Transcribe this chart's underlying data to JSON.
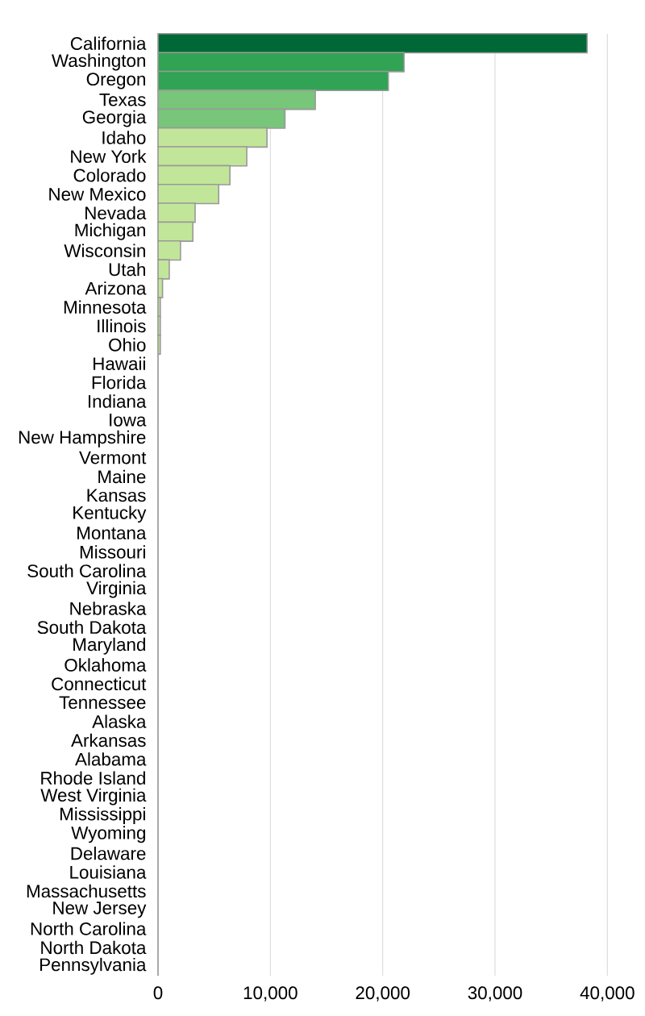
{
  "chart_data": {
    "type": "bar",
    "orientation": "horizontal",
    "categories": [
      "California",
      "Washington",
      "Oregon",
      "Texas",
      "Georgia",
      "Idaho",
      "New York",
      "Colorado",
      "New Mexico",
      "Nevada",
      "Michigan",
      "Wisconsin",
      "Utah",
      "Arizona",
      "Minnesota",
      "Illinois",
      "Ohio",
      "Hawaii",
      "Florida",
      "Indiana",
      "Iowa",
      "New Hampshire",
      "Vermont",
      "Maine",
      "Kansas",
      "Kentucky",
      "Montana",
      "Missouri",
      "South Carolina",
      "Virginia",
      "Nebraska",
      "South Dakota",
      "Maryland",
      "Oklahoma",
      "Connecticut",
      "Tennessee",
      "Alaska",
      "Arkansas",
      "Alabama",
      "Rhode Island",
      "West Virginia",
      "Mississippi",
      "Wyoming",
      "Delaware",
      "Louisiana",
      "Massachusetts",
      "New Jersey",
      "North Carolina",
      "North Dakota",
      "Pennsylvania"
    ],
    "values": [
      38200,
      21900,
      20500,
      14000,
      11300,
      9700,
      7900,
      6400,
      5400,
      3300,
      3100,
      2000,
      1000,
      400,
      200,
      200,
      200,
      0,
      0,
      0,
      0,
      0,
      0,
      0,
      0,
      0,
      0,
      0,
      0,
      0,
      0,
      0,
      0,
      0,
      0,
      0,
      0,
      0,
      0,
      0,
      0,
      0,
      0,
      0,
      0,
      0,
      0,
      0,
      0,
      0
    ],
    "colors": [
      "#006837",
      "#31a354",
      "#31a354",
      "#78c679",
      "#78c679",
      "#c2e699",
      "#c2e699",
      "#c2e699",
      "#c2e699",
      "#c2e699",
      "#c2e699",
      "#c2e699",
      "#c2e699",
      "#c2e699",
      "#c2e699",
      "#c2e699",
      "#c2e699",
      "#c2e699",
      "#c2e699",
      "#c2e699",
      "#c2e699",
      "#c2e699",
      "#c2e699",
      "#c2e699",
      "#c2e699",
      "#c2e699",
      "#c2e699",
      "#c2e699",
      "#c2e699",
      "#c2e699",
      "#c2e699",
      "#c2e699",
      "#c2e699",
      "#c2e699",
      "#c2e699",
      "#c2e699",
      "#c2e699",
      "#c2e699",
      "#c2e699",
      "#c2e699",
      "#c2e699",
      "#c2e699",
      "#c2e699",
      "#c2e699",
      "#c2e699",
      "#c2e699",
      "#c2e699",
      "#c2e699",
      "#c2e699",
      "#c2e699"
    ],
    "xlim": [
      0,
      40000
    ],
    "xticks": [
      {
        "value": 0,
        "label": "0"
      },
      {
        "value": 10000,
        "label": "10,000"
      },
      {
        "value": 20000,
        "label": "20,000"
      },
      {
        "value": 30000,
        "label": "30,000"
      },
      {
        "value": 40000,
        "label": "40,000"
      }
    ],
    "grid": "x"
  }
}
